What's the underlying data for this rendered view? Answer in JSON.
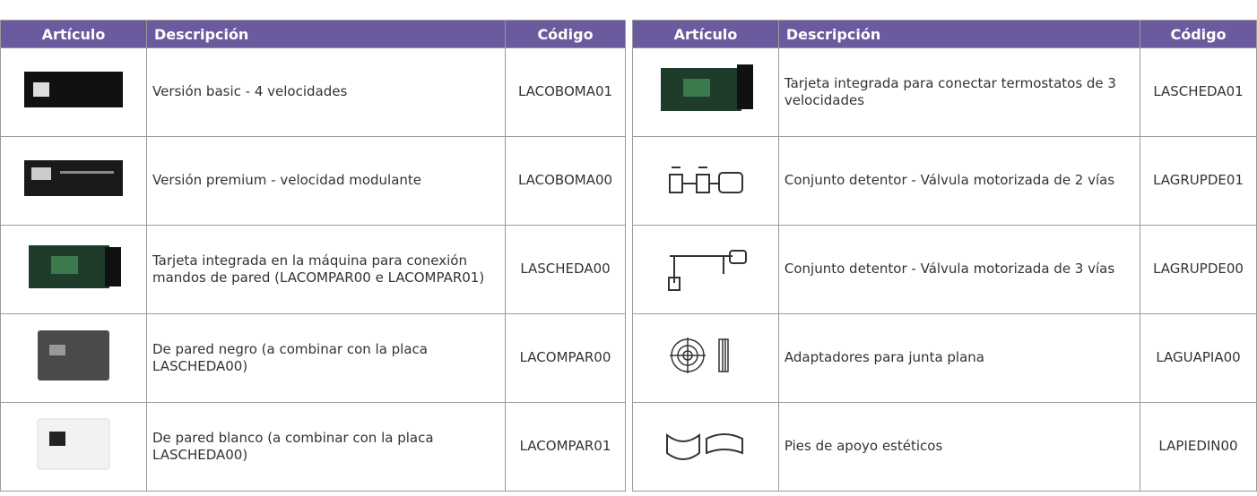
{
  "tables": [
    {
      "header": [
        "Artículo",
        "Descripción",
        "Código"
      ],
      "rows": [
        {
          "description": "Versión basic - 4 velocidades",
          "code": "LACOBOMA01"
        },
        {
          "description": "Versión premium - velocidad modulante",
          "code": "LACOBOMA00"
        },
        {
          "description": "Tarjeta integrada en la máquina para conexión mandos de pared (LACOMPAR00 e LACOMPAR01)",
          "code": "LASCHEDA00"
        },
        {
          "description": "De pared negro (a combinar con la placa LASCHEDA00)",
          "code": "LACOMPAR00"
        },
        {
          "description": "De pared blanco (a combinar con la placa LASCHEDA00)",
          "code": "LACOMPAR01"
        }
      ]
    },
    {
      "header": [
        "Artículo",
        "Descripción",
        "Código"
      ],
      "rows": [
        {
          "description": "Tarjeta integrada para conectar termostatos de 3 velocidades",
          "code": "LASCHEDA01"
        },
        {
          "description": "Conjunto detentor - Válvula motorizada de 2 vías",
          "code": "LAGRUPDE01"
        },
        {
          "description": "Conjunto detentor - Válvula motorizada de 3 vías",
          "code": "LAGRUPDE00"
        },
        {
          "description": "Adaptadores para junta plana",
          "code": "LAGUAPIA00"
        },
        {
          "description": "Pies de apoyo estéticos",
          "code": "LAPIEDIN00"
        }
      ]
    }
  ]
}
